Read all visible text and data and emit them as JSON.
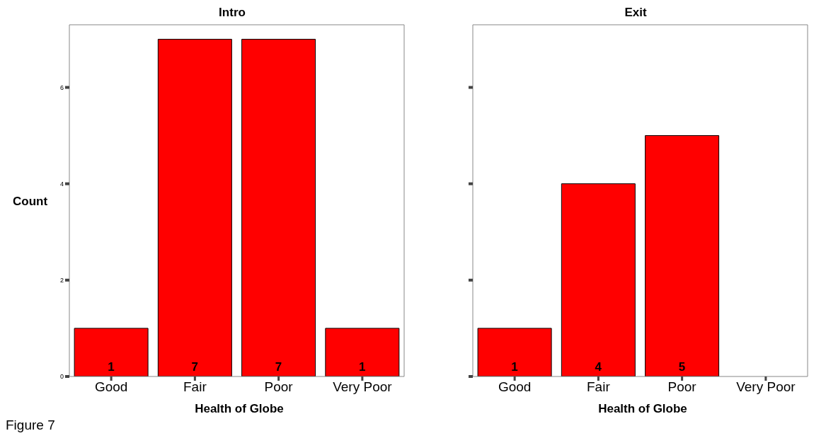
{
  "chart_data": [
    {
      "type": "bar",
      "title": "Intro",
      "xlabel": "Health of Globe",
      "ylabel": "Count",
      "categories": [
        "Good",
        "Fair",
        "Poor",
        "Very Poor"
      ],
      "values": [
        1,
        7,
        7,
        1
      ],
      "color": "#ff0000",
      "ylim": [
        0,
        7.3
      ],
      "yticks": [
        0,
        2,
        4,
        6
      ],
      "grid": false,
      "data_labels": true,
      "annotations": [
        "Figure 7"
      ]
    },
    {
      "type": "bar",
      "title": "Exit",
      "xlabel": "Health of Globe",
      "categories": [
        "Good",
        "Fair",
        "Poor",
        "Very Poor"
      ],
      "values": [
        1,
        4,
        5,
        0
      ],
      "value_labels": [
        "1",
        "4",
        "5",
        null
      ],
      "color": "#ff0000",
      "ylim": [
        0,
        7.3
      ],
      "yticks": [
        0,
        2,
        4,
        6
      ],
      "grid": false,
      "tick_labels": "x"
    }
  ]
}
